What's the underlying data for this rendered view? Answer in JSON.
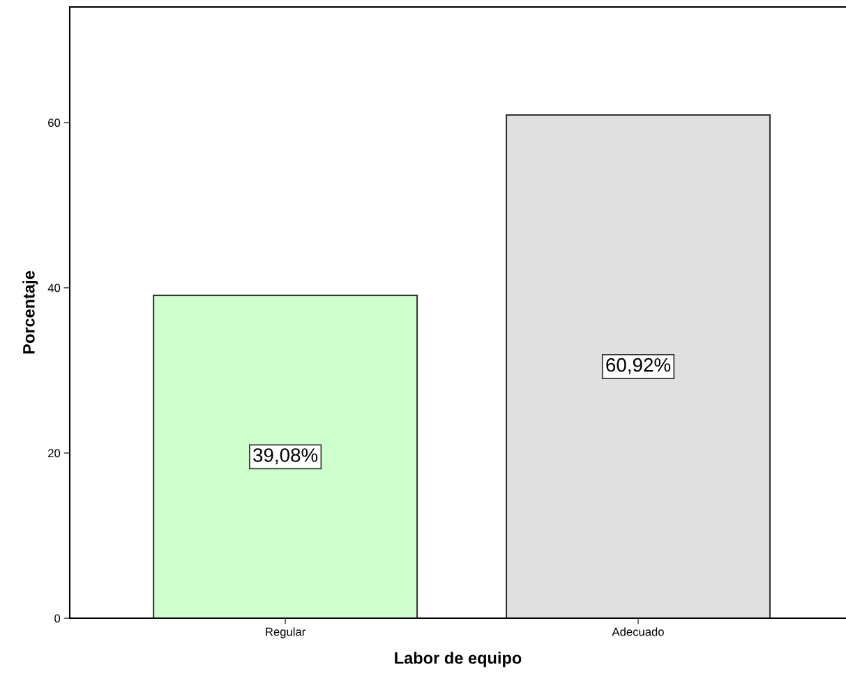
{
  "chart_data": {
    "type": "bar",
    "xlabel": "Labor de equipo",
    "ylabel": "Porcentaje",
    "categories": [
      "Regular",
      "Adecuado"
    ],
    "values": [
      39.08,
      60.92
    ],
    "colors": [
      "#ccffcc",
      "#e0e0e0"
    ],
    "value_labels": [
      "39,08%",
      "60,92%"
    ],
    "ylim": [
      0,
      74
    ],
    "yticks": [
      0,
      20,
      40,
      60
    ],
    "grid": false,
    "legend": false
  }
}
